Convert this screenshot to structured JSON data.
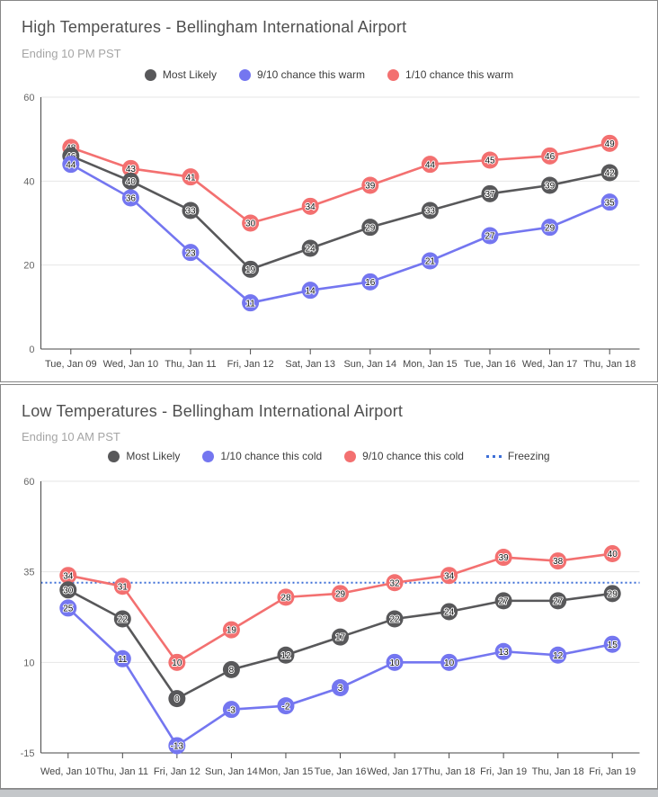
{
  "chart_data": [
    {
      "type": "line",
      "title": "High Temperatures - Bellingham International Airport",
      "subtitle": "Ending 10 PM PST",
      "legend_position": "top",
      "grid": true,
      "categories": [
        "Tue, Jan 09",
        "Wed, Jan 10",
        "Thu, Jan 11",
        "Fri, Jan 12",
        "Sat, Jan 13",
        "Sun, Jan 14",
        "Mon, Jan 15",
        "Tue, Jan 16",
        "Wed, Jan 17",
        "Thu, Jan 18"
      ],
      "series": [
        {
          "name": "Most Likely",
          "color": "#58585a",
          "values": [
            46,
            40,
            33,
            19,
            24,
            29,
            33,
            37,
            39,
            42
          ]
        },
        {
          "name": "9/10 chance this warm",
          "color": "#7476f0",
          "values": [
            44,
            36,
            23,
            11,
            14,
            16,
            21,
            27,
            29,
            35
          ]
        },
        {
          "name": "1/10 chance this warm",
          "color": "#f37070",
          "values": [
            48,
            43,
            41,
            30,
            34,
            39,
            44,
            45,
            46,
            49
          ]
        }
      ],
      "ylim": [
        0,
        60
      ],
      "yticks": [
        0,
        20,
        40,
        60
      ]
    },
    {
      "type": "line",
      "title": "Low Temperatures - Bellingham International Airport",
      "subtitle": "Ending 10 AM PST",
      "legend_position": "top",
      "grid": true,
      "categories": [
        "Wed, Jan 10",
        "Thu, Jan 11",
        "Fri, Jan 12",
        "Sun, Jan 14",
        "Mon, Jan 15",
        "Tue, Jan 16",
        "Wed, Jan 17",
        "Thu, Jan 18",
        "Fri, Jan 19",
        "Thu, Jan 18",
        "Fri, Jan 19"
      ],
      "series": [
        {
          "name": "Most Likely",
          "color": "#58585a",
          "values": [
            30,
            22,
            0,
            8,
            12,
            17,
            22,
            24,
            27,
            27,
            29
          ]
        },
        {
          "name": "1/10 chance this cold",
          "color": "#7476f0",
          "values": [
            25,
            11,
            -13,
            -3,
            -2,
            3,
            10,
            10,
            13,
            12,
            15
          ]
        },
        {
          "name": "9/10 chance this cold",
          "color": "#f37070",
          "values": [
            34,
            31,
            10,
            19,
            28,
            29,
            32,
            34,
            39,
            38,
            40
          ]
        }
      ],
      "reference_line": {
        "label": "Freezing",
        "value": 32,
        "color": "#3d6fd7",
        "style": "dotted"
      },
      "ylim": [
        -15,
        60
      ],
      "yticks": [
        -15,
        10,
        35,
        60
      ]
    }
  ]
}
